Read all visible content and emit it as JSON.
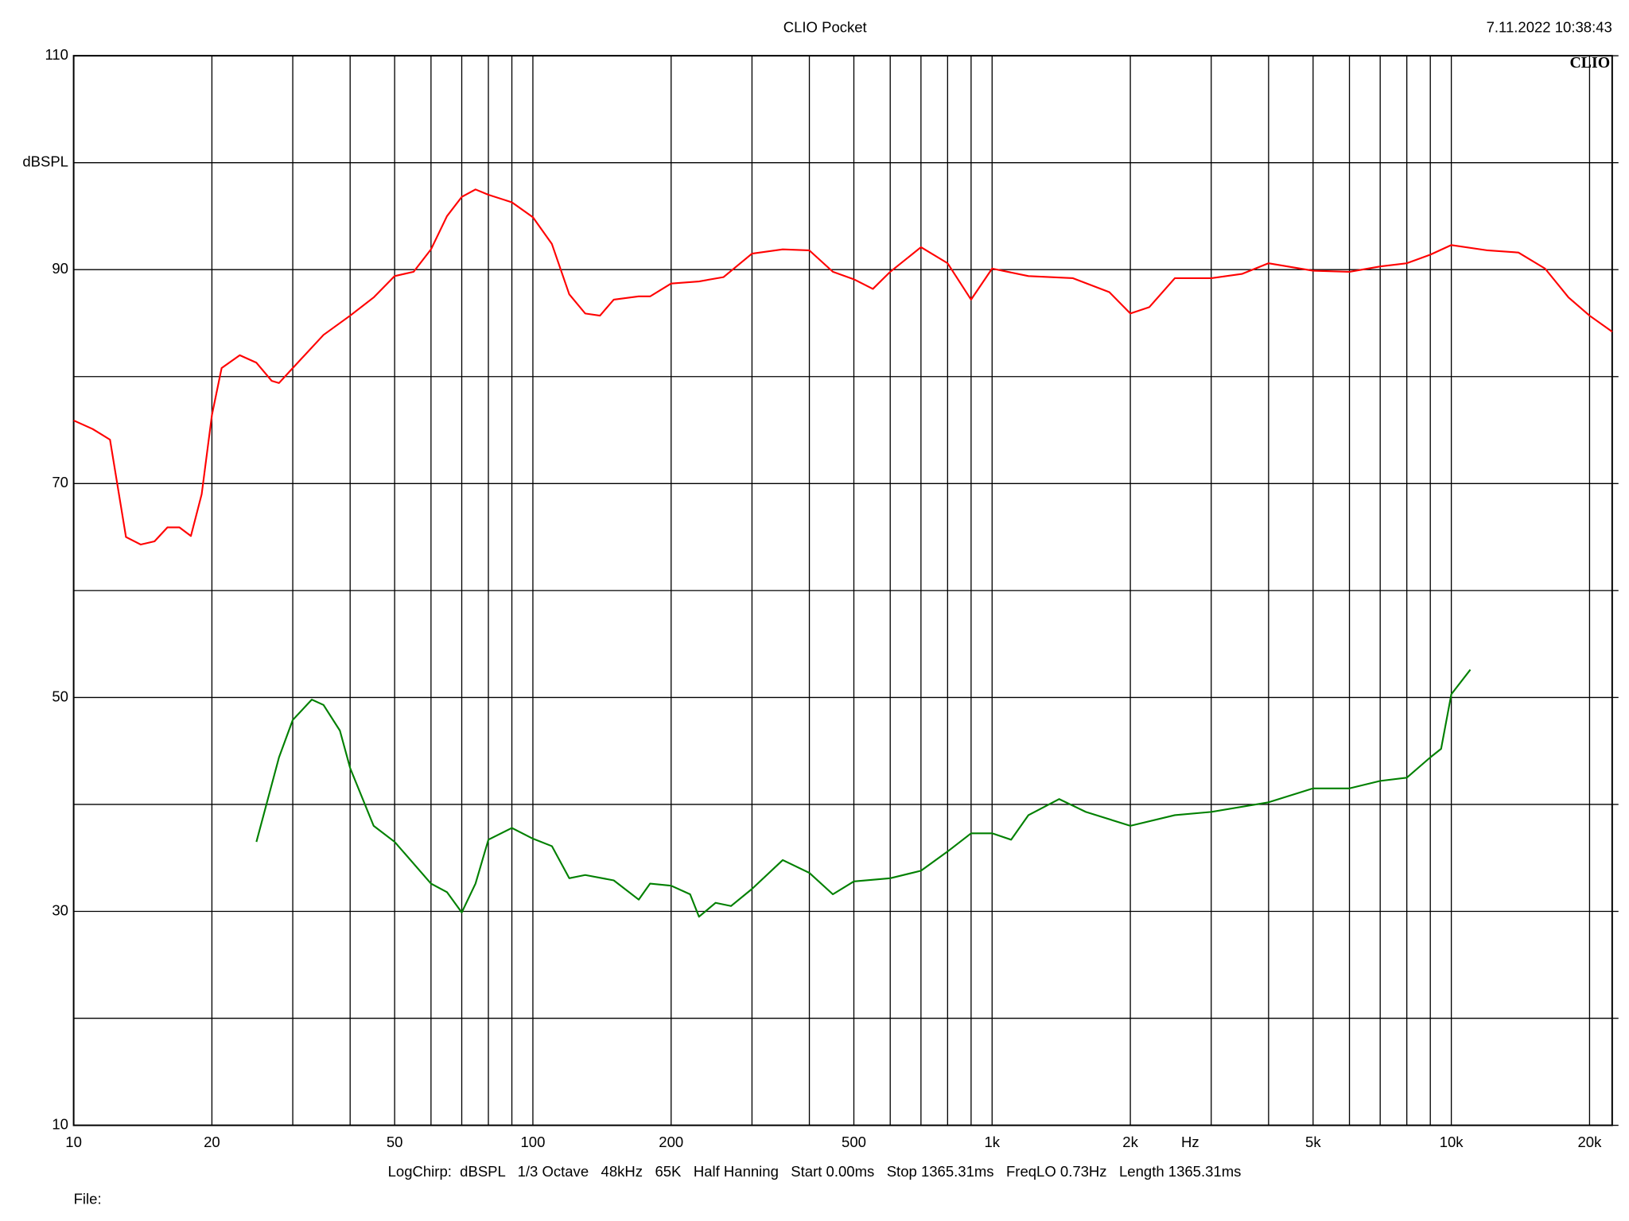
{
  "chart_data": {
    "type": "line",
    "title": "CLIO Pocket",
    "timestamp": "7.11.2022 10:38:43",
    "logo": "CLIO",
    "x_label": "Hz",
    "footer": "LogChirp:  dBSPL   1/3 Octave   48kHz   65K   Half Hanning   Start 0.00ms   Stop 1365.31ms   FreqLO 0.73Hz   Length 1365.31ms",
    "file_label": "File:",
    "xscale": "log",
    "grid": true,
    "xlim": [
      10,
      22400
    ],
    "ylim": [
      10,
      110
    ],
    "xticks": [
      10,
      20,
      {
        "value": 30,
        "label": null
      },
      {
        "value": 40,
        "label": null
      },
      50,
      {
        "value": 60,
        "label": null
      },
      {
        "value": 70,
        "label": null
      },
      {
        "value": 80,
        "label": null
      },
      {
        "value": 90,
        "label": null
      },
      100,
      200,
      {
        "value": 300,
        "label": null
      },
      {
        "value": 400,
        "label": null
      },
      500,
      {
        "value": 600,
        "label": null
      },
      {
        "value": 700,
        "label": null
      },
      {
        "value": 800,
        "label": null
      },
      {
        "value": 900,
        "label": null
      },
      {
        "value": 1000,
        "label": "1k"
      },
      {
        "value": 2000,
        "label": "2k"
      },
      {
        "value": 3000,
        "label": null
      },
      {
        "value": 4000,
        "label": null
      },
      {
        "value": 5000,
        "label": "5k"
      },
      {
        "value": 6000,
        "label": null
      },
      {
        "value": 7000,
        "label": null
      },
      {
        "value": 8000,
        "label": null
      },
      {
        "value": 9000,
        "label": null
      },
      {
        "value": 10000,
        "label": "10k"
      },
      {
        "value": 20000,
        "label": "20k"
      }
    ],
    "yticks": [
      10,
      {
        "value": 20,
        "label": null
      },
      30,
      {
        "value": 40,
        "label": null
      },
      50,
      {
        "value": 60,
        "label": null
      },
      70,
      {
        "value": 80,
        "label": null
      },
      90,
      {
        "value": 100,
        "label": "dBSPL"
      },
      110
    ],
    "series": [
      {
        "color": "#ff0000",
        "x": [
          10,
          11,
          12,
          13,
          14,
          15,
          16,
          17,
          18,
          19,
          20,
          21,
          23,
          25,
          27,
          28,
          30,
          35,
          40,
          45,
          50,
          55,
          60,
          65,
          70,
          75,
          80,
          90,
          100,
          110,
          120,
          130,
          140,
          150,
          170,
          180,
          200,
          230,
          260,
          300,
          350,
          400,
          450,
          500,
          550,
          600,
          700,
          800,
          900,
          1000,
          1200,
          1500,
          1800,
          2000,
          2200,
          2500,
          3000,
          3500,
          4000,
          5000,
          6000,
          7000,
          8000,
          9000,
          10000,
          12000,
          14000,
          16000,
          18000,
          20000,
          22400
        ],
        "values": [
          75.9,
          75.1,
          74.1,
          65,
          64.3,
          64.6,
          65.9,
          65.9,
          65.1,
          69,
          76.4,
          80.8,
          82,
          81.3,
          79.6,
          79.4,
          80.8,
          83.9,
          85.7,
          87.4,
          89.4,
          89.8,
          91.9,
          95,
          96.8,
          97.5,
          97,
          96.3,
          94.9,
          92.4,
          87.7,
          85.9,
          85.7,
          87.2,
          87.5,
          87.5,
          88.7,
          88.9,
          89.3,
          91.5,
          91.9,
          91.8,
          89.8,
          89.1,
          88.2,
          89.8,
          92.1,
          90.6,
          87.2,
          90.1,
          89.4,
          89.2,
          87.9,
          85.9,
          86.5,
          89.2,
          89.2,
          89.6,
          90.6,
          89.9,
          89.8,
          90.3,
          90.6,
          91.4,
          92.3,
          91.8,
          91.6,
          90.1,
          87.4,
          85.7,
          84.2
        ]
      },
      {
        "color": "#008000",
        "x": [
          25,
          28,
          30,
          33,
          35,
          38,
          40,
          45,
          50,
          60,
          65,
          70,
          75,
          80,
          90,
          100,
          110,
          120,
          130,
          150,
          170,
          180,
          200,
          220,
          230,
          250,
          270,
          300,
          350,
          400,
          450,
          500,
          600,
          700,
          800,
          900,
          1000,
          1100,
          1200,
          1400,
          1600,
          2000,
          2500,
          3000,
          4000,
          5000,
          6000,
          7000,
          8000,
          9000,
          9500,
          10000,
          11000
        ],
        "values": [
          36.5,
          44.4,
          47.9,
          49.8,
          49.3,
          46.9,
          43.4,
          38,
          36.5,
          32.6,
          31.8,
          29.9,
          32.6,
          36.7,
          37.8,
          36.8,
          36.1,
          33.1,
          33.4,
          32.9,
          31.1,
          32.6,
          32.4,
          31.6,
          29.5,
          30.8,
          30.5,
          32.1,
          34.8,
          33.6,
          31.6,
          32.8,
          33.1,
          33.8,
          35.6,
          37.3,
          37.3,
          36.7,
          39,
          40.5,
          39.3,
          38,
          39,
          39.3,
          40.2,
          41.5,
          41.5,
          42.2,
          42.5,
          44.4,
          45.2,
          50.3,
          52.6
        ]
      }
    ]
  }
}
